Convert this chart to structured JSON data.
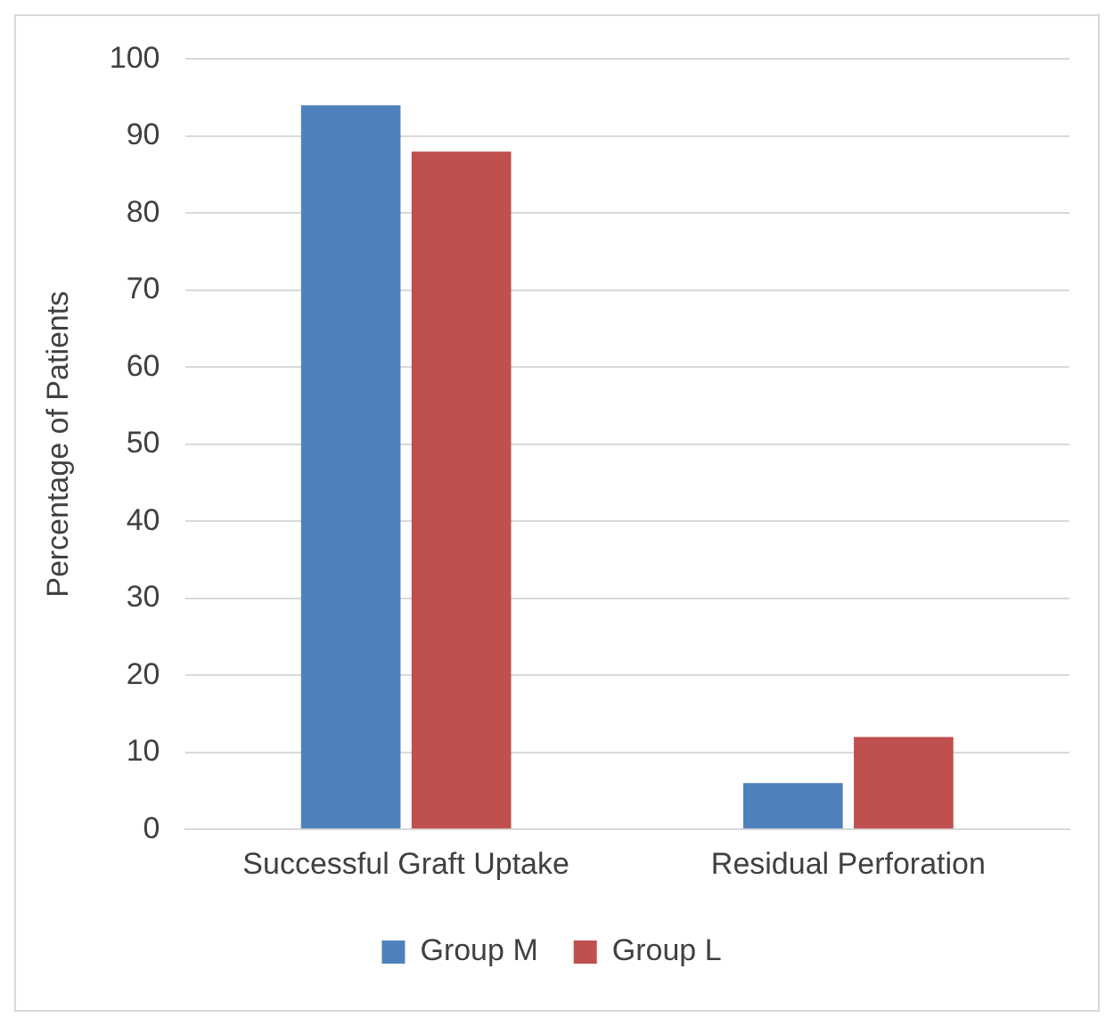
{
  "chart_data": {
    "type": "bar",
    "ylabel": "Percentage of Patients",
    "categories": [
      "Successful Graft Uptake",
      "Residual Perforation"
    ],
    "series": [
      {
        "name": "Group M",
        "color": "#4f81bd",
        "values": [
          94,
          6
        ]
      },
      {
        "name": "Group L",
        "color": "#c0504d",
        "values": [
          88,
          12
        ]
      }
    ],
    "ylim": [
      0,
      100
    ],
    "yticks": [
      0,
      10,
      20,
      30,
      40,
      50,
      60,
      70,
      80,
      90,
      100
    ],
    "grid": "y",
    "legend": "bottom"
  }
}
